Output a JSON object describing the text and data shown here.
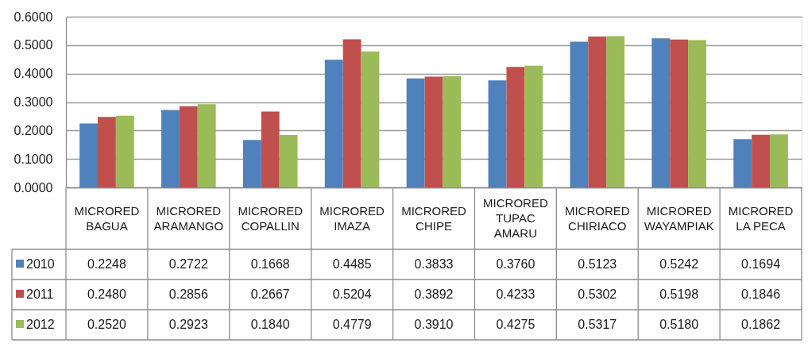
{
  "chart_data": {
    "type": "bar",
    "categories": [
      "MICRORED BAGUA",
      "MICRORED ARAMANGO",
      "MICRORED COPALLIN",
      "MICRORED IMAZA",
      "MICRORED CHIPE",
      "MICRORED TUPAC AMARU",
      "MICRORED CHIRIACO",
      "MICRORED WAYAMPIAK",
      "MICRORED LA PECA"
    ],
    "series": [
      {
        "name": "2010",
        "color": "#4f81bd",
        "values": [
          0.2248,
          0.2722,
          0.1668,
          0.4485,
          0.3833,
          0.376,
          0.5123,
          0.5242,
          0.1694
        ],
        "value_labels": [
          "0.2248",
          "0.2722",
          "0.1668",
          "0.4485",
          "0.3833",
          "0.3760",
          "0.5123",
          "0.5242",
          "0.1694"
        ]
      },
      {
        "name": "2011",
        "color": "#c0504d",
        "values": [
          0.248,
          0.2856,
          0.2667,
          0.5204,
          0.3892,
          0.4233,
          0.5302,
          0.5198,
          0.1846
        ],
        "value_labels": [
          "0.2480",
          "0.2856",
          "0.2667",
          "0.5204",
          "0.3892",
          "0.4233",
          "0.5302",
          "0.5198",
          "0.1846"
        ]
      },
      {
        "name": "2012",
        "color": "#9bbb59",
        "values": [
          0.252,
          0.2923,
          0.184,
          0.4779,
          0.391,
          0.4275,
          0.5317,
          0.518,
          0.1862
        ],
        "value_labels": [
          "0.2520",
          "0.2923",
          "0.1840",
          "0.4779",
          "0.3910",
          "0.4275",
          "0.5317",
          "0.5180",
          "0.1862"
        ]
      }
    ],
    "ylim": [
      0,
      0.6
    ],
    "yticks": [
      {
        "value": 0,
        "label": "0.0000"
      },
      {
        "value": 0.1,
        "label": "0.1000"
      },
      {
        "value": 0.2,
        "label": "0.2000"
      },
      {
        "value": 0.3,
        "label": "0.3000"
      },
      {
        "value": 0.4,
        "label": "0.4000"
      },
      {
        "value": 0.5,
        "label": "0.5000"
      },
      {
        "value": 0.6,
        "label": "0.6000"
      }
    ],
    "grid": "y",
    "legend": "bottom left"
  }
}
